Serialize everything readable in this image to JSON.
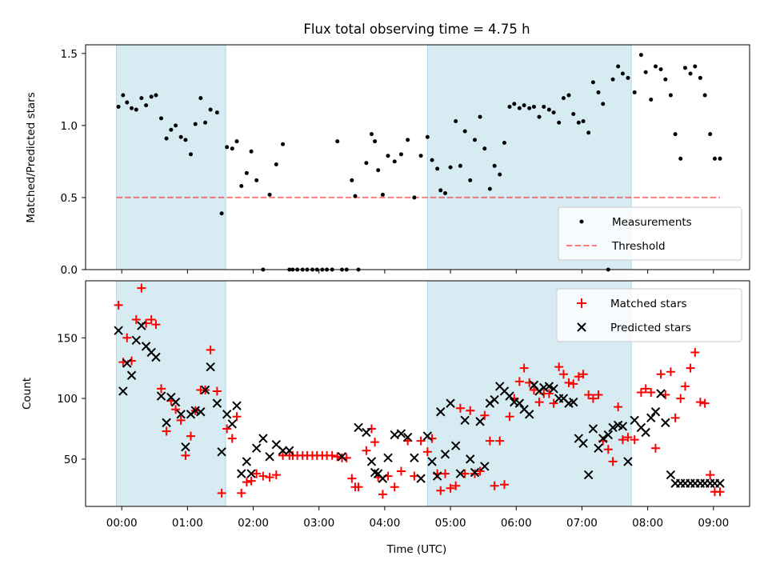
{
  "chart_data": {
    "type": "scatter",
    "title": "Flux total observing time = 4.75 h",
    "xlabel": "Time (UTC)",
    "x_ticks": [
      "00:00",
      "01:00",
      "02:00",
      "03:00",
      "04:00",
      "05:00",
      "06:00",
      "07:00",
      "08:00",
      "09:00"
    ],
    "x_range_hours": [
      -0.55,
      9.55
    ],
    "shaded_intervals_hours": [
      [
        -0.08,
        1.58
      ],
      [
        4.65,
        7.75
      ]
    ],
    "colors": {
      "shade": "#add8e6",
      "threshold": "#ff0000",
      "matched": "#ff0000",
      "predicted": "#000000",
      "measurement": "#000000"
    },
    "top_panel": {
      "ylabel": "Matched/Predicted stars",
      "ylim": [
        0,
        1.56
      ],
      "yticks": [
        "0.0",
        "0.5",
        "1.0",
        "1.5"
      ],
      "legend_position": "lower right",
      "legend": [
        "Measurements",
        "Threshold"
      ],
      "threshold": {
        "name": "Threshold",
        "value": 0.5,
        "x_start": -0.08,
        "x_end": 9.1
      },
      "measurements": {
        "name": "Measurements",
        "x": [
          -0.05,
          0.02,
          0.08,
          0.15,
          0.22,
          0.3,
          0.37,
          0.45,
          0.52,
          0.6,
          0.68,
          0.75,
          0.82,
          0.9,
          0.97,
          1.05,
          1.12,
          1.2,
          1.27,
          1.35,
          1.45,
          1.52,
          1.6,
          1.68,
          1.75,
          1.82,
          1.9,
          1.97,
          2.05,
          2.15,
          2.25,
          2.35,
          2.45,
          2.55,
          2.6,
          2.67,
          2.75,
          2.82,
          2.9,
          2.97,
          3.05,
          3.12,
          3.2,
          3.28,
          3.35,
          3.42,
          3.5,
          3.55,
          3.6,
          3.72,
          3.8,
          3.85,
          3.9,
          3.97,
          4.05,
          4.15,
          4.25,
          4.35,
          4.45,
          4.55,
          4.65,
          4.72,
          4.8,
          4.85,
          4.92,
          5.0,
          5.08,
          5.15,
          5.22,
          5.3,
          5.37,
          5.45,
          5.52,
          5.6,
          5.67,
          5.75,
          5.82,
          5.9,
          5.97,
          6.05,
          6.12,
          6.2,
          6.27,
          6.35,
          6.42,
          6.5,
          6.57,
          6.65,
          6.72,
          6.8,
          6.87,
          6.95,
          7.02,
          7.1,
          7.17,
          7.25,
          7.32,
          7.4,
          7.47,
          7.55,
          7.62,
          7.7,
          7.8,
          7.9,
          7.97,
          8.05,
          8.12,
          8.2,
          8.27,
          8.35,
          8.42,
          8.5,
          8.57,
          8.65,
          8.72,
          8.8,
          8.87,
          8.95,
          9.02,
          9.1
        ],
        "y": [
          1.13,
          1.21,
          1.16,
          1.12,
          1.11,
          1.19,
          1.14,
          1.2,
          1.21,
          1.05,
          0.91,
          0.97,
          1.0,
          0.92,
          0.9,
          0.8,
          1.01,
          1.19,
          1.02,
          1.11,
          1.09,
          0.39,
          0.85,
          0.84,
          0.89,
          0.58,
          0.67,
          0.82,
          0.62,
          0.0,
          0.52,
          0.73,
          0.87,
          0.0,
          0.0,
          0.0,
          0.0,
          0.0,
          0.0,
          0.0,
          0.0,
          0.0,
          0.0,
          0.89,
          0.0,
          0.0,
          0.62,
          0.51,
          0.0,
          0.74,
          0.94,
          0.89,
          0.69,
          0.52,
          0.79,
          0.75,
          0.8,
          0.9,
          0.5,
          0.79,
          0.92,
          0.76,
          0.7,
          0.55,
          0.53,
          0.71,
          1.03,
          0.72,
          0.96,
          0.62,
          0.9,
          1.06,
          0.84,
          0.56,
          0.72,
          0.66,
          0.88,
          1.13,
          1.15,
          1.12,
          1.14,
          1.12,
          1.13,
          1.06,
          1.13,
          1.11,
          1.09,
          1.02,
          1.19,
          1.21,
          1.08,
          1.02,
          1.03,
          0.95,
          1.3,
          1.23,
          1.15,
          0.0,
          1.32,
          1.41,
          1.36,
          1.33,
          1.23,
          1.49,
          1.37,
          1.18,
          1.41,
          1.39,
          1.32,
          1.21,
          0.94,
          0.77,
          1.4,
          1.36,
          1.41,
          1.33,
          1.21,
          0.94,
          0.77,
          0.77
        ]
      }
    },
    "bottom_panel": {
      "ylabel": "Count",
      "ylim": [
        11,
        197
      ],
      "yticks": [
        "50",
        "100",
        "150"
      ],
      "legend_position": "upper right",
      "legend": [
        "Matched stars",
        "Predicted stars"
      ],
      "series": [
        {
          "name": "Matched stars",
          "marker": "+",
          "x": [
            -0.05,
            0.02,
            0.08,
            0.15,
            0.22,
            0.3,
            0.37,
            0.45,
            0.52,
            0.6,
            0.68,
            0.75,
            0.82,
            0.9,
            0.97,
            1.05,
            1.12,
            1.2,
            1.27,
            1.35,
            1.45,
            1.52,
            1.6,
            1.68,
            1.75,
            1.82,
            1.9,
            1.97,
            2.05,
            2.15,
            2.25,
            2.35,
            2.45,
            2.55,
            2.6,
            2.67,
            2.75,
            2.82,
            2.9,
            2.97,
            3.05,
            3.12,
            3.2,
            3.28,
            3.35,
            3.42,
            3.5,
            3.55,
            3.6,
            3.72,
            3.8,
            3.85,
            3.9,
            3.97,
            4.05,
            4.15,
            4.25,
            4.35,
            4.45,
            4.55,
            4.65,
            4.72,
            4.8,
            4.85,
            4.92,
            5.0,
            5.08,
            5.15,
            5.22,
            5.3,
            5.37,
            5.45,
            5.52,
            5.6,
            5.67,
            5.75,
            5.82,
            5.9,
            5.97,
            6.05,
            6.12,
            6.2,
            6.27,
            6.35,
            6.42,
            6.5,
            6.57,
            6.65,
            6.72,
            6.8,
            6.87,
            6.95,
            7.02,
            7.1,
            7.17,
            7.25,
            7.32,
            7.4,
            7.47,
            7.55,
            7.62,
            7.7,
            7.8,
            7.9,
            7.97,
            8.05,
            8.12,
            8.2,
            8.27,
            8.35,
            8.42,
            8.5,
            8.57,
            8.65,
            8.72,
            8.8,
            8.87,
            8.95,
            9.02,
            9.1
          ],
          "y": [
            177,
            130,
            150,
            131,
            165,
            191,
            162,
            165,
            161,
            108,
            73,
            98,
            91,
            82,
            53,
            69,
            90,
            107,
            107,
            140,
            106,
            22,
            75,
            67,
            85,
            22,
            31,
            32,
            38,
            36,
            35,
            37,
            53,
            53,
            53,
            53,
            53,
            53,
            53,
            53,
            53,
            53,
            53,
            52,
            51,
            51,
            34,
            27,
            27,
            57,
            75,
            64,
            35,
            21,
            36,
            27,
            40,
            65,
            36,
            65,
            56,
            67,
            38,
            24,
            38,
            26,
            28,
            92,
            38,
            90,
            38,
            40,
            86,
            65,
            28,
            65,
            29,
            85,
            100,
            114,
            125,
            113,
            107,
            97,
            104,
            104,
            96,
            126,
            120,
            113,
            112,
            118,
            120,
            103,
            100,
            103,
            65,
            58,
            48,
            93,
            66,
            68,
            66,
            105,
            108,
            105,
            59,
            120,
            103,
            122,
            84,
            100,
            110,
            125,
            138,
            97,
            96,
            37,
            23,
            23
          ]
        },
        {
          "name": "Predicted stars",
          "marker": "x",
          "x": [
            -0.05,
            0.02,
            0.08,
            0.15,
            0.22,
            0.3,
            0.37,
            0.45,
            0.52,
            0.6,
            0.68,
            0.75,
            0.82,
            0.9,
            0.97,
            1.05,
            1.12,
            1.2,
            1.27,
            1.35,
            1.45,
            1.52,
            1.6,
            1.68,
            1.75,
            1.82,
            1.9,
            1.97,
            2.05,
            2.15,
            2.25,
            2.35,
            2.45,
            2.55,
            3.35,
            3.6,
            3.72,
            3.8,
            3.85,
            3.9,
            3.97,
            4.05,
            4.15,
            4.25,
            4.35,
            4.45,
            4.55,
            4.65,
            4.72,
            4.8,
            4.85,
            4.92,
            5.0,
            5.08,
            5.15,
            5.22,
            5.3,
            5.37,
            5.45,
            5.52,
            5.6,
            5.67,
            5.75,
            5.82,
            5.9,
            5.97,
            6.05,
            6.12,
            6.2,
            6.27,
            6.35,
            6.42,
            6.5,
            6.57,
            6.65,
            6.72,
            6.8,
            6.87,
            6.95,
            7.02,
            7.1,
            7.17,
            7.25,
            7.32,
            7.4,
            7.47,
            7.55,
            7.62,
            7.7,
            7.8,
            7.9,
            7.97,
            8.05,
            8.12,
            8.2,
            8.27,
            8.35,
            8.42,
            8.5,
            8.57,
            8.65,
            8.72,
            8.8,
            8.87,
            8.95,
            9.02,
            9.1
          ],
          "y": [
            156,
            106,
            129,
            119,
            148,
            160,
            143,
            138,
            134,
            102,
            80,
            101,
            97,
            87,
            60,
            87,
            90,
            89,
            107,
            126,
            96,
            56,
            87,
            79,
            94,
            38,
            48,
            38,
            59,
            67,
            52,
            62,
            57,
            57,
            52,
            76,
            72,
            48,
            39,
            38,
            34,
            51,
            70,
            71,
            68,
            51,
            34,
            69,
            48,
            36,
            89,
            54,
            96,
            61,
            38,
            82,
            50,
            39,
            81,
            44,
            96,
            99,
            110,
            106,
            102,
            97,
            96,
            91,
            87,
            111,
            106,
            109,
            110,
            108,
            100,
            100,
            96,
            97,
            67,
            63,
            37,
            75,
            59,
            67,
            70,
            76,
            78,
            77,
            48,
            82,
            76,
            72,
            84,
            89,
            104,
            80,
            37,
            30,
            30,
            30,
            30,
            30,
            30,
            30,
            30,
            30,
            30
          ]
        }
      ]
    }
  }
}
